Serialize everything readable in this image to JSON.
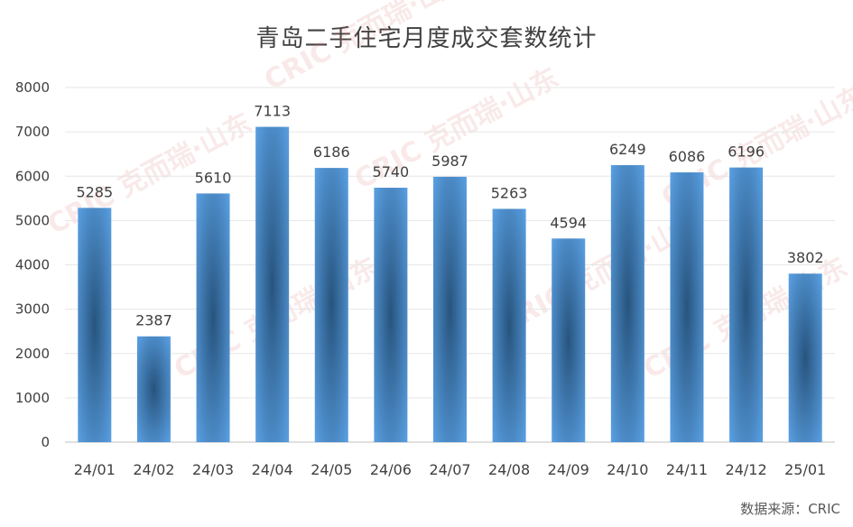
{
  "chart_data": {
    "type": "bar",
    "title": "青岛二手住宅月度成交套数统计",
    "categories": [
      "24/01",
      "24/02",
      "24/03",
      "24/04",
      "24/05",
      "24/06",
      "24/07",
      "24/08",
      "24/09",
      "24/10",
      "24/11",
      "24/12",
      "25/01"
    ],
    "values": [
      5285,
      2387,
      5610,
      7113,
      6186,
      5740,
      5987,
      5263,
      4594,
      6249,
      6086,
      6196,
      3802
    ],
    "ylim": [
      0,
      8000
    ],
    "yticks": [
      0,
      1000,
      2000,
      3000,
      4000,
      5000,
      6000,
      7000,
      8000
    ],
    "grid": true,
    "colors": {
      "bar_edge": "#5aa0e3",
      "bar_center": "#2b5b87"
    }
  },
  "source": "数据来源：CRIC",
  "watermark": "CRIC 克而瑞·山东"
}
